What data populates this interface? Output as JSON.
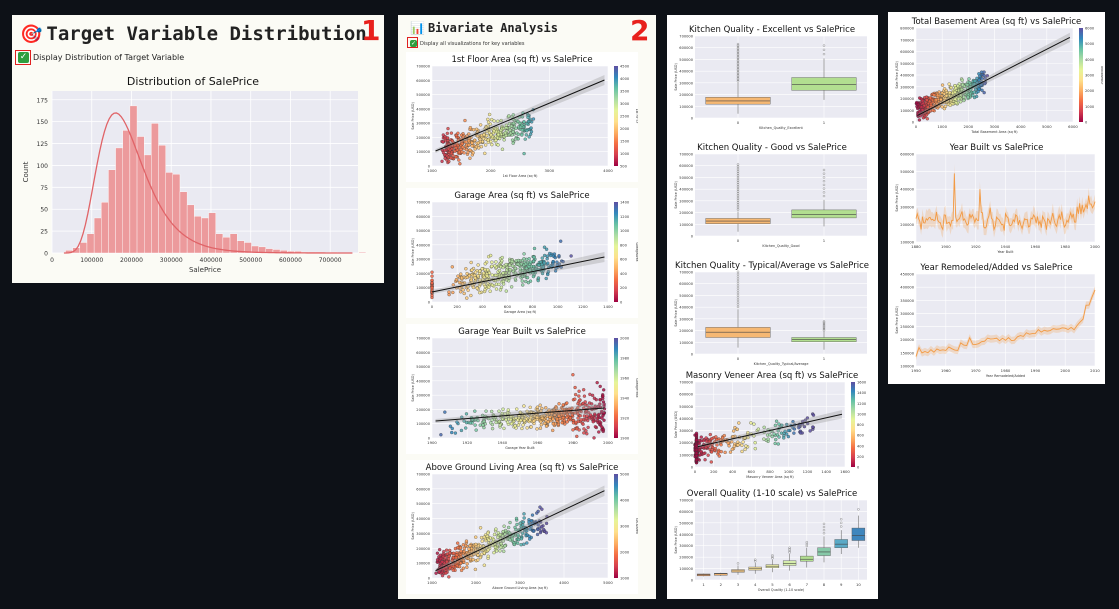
{
  "section1": {
    "emoji": "🎯",
    "title": "Target Variable Distribution",
    "number": "1",
    "checkbox_label": "Display Distribution of Target Variable",
    "chart_title": "Distribution of SalePrice",
    "xlabel": "SalePrice",
    "ylabel": "Count",
    "yticks": [
      "0",
      "25",
      "50",
      "75",
      "100",
      "125",
      "150",
      "175"
    ],
    "xticks": [
      "0",
      "100000",
      "200000",
      "300000",
      "400000",
      "500000",
      "600000",
      "700000"
    ]
  },
  "section2": {
    "emoji": "📊",
    "title": "Bivariate Analysis",
    "number": "2",
    "checkbox_label": "Display all visualizations for key variables"
  },
  "charts": {
    "c_1stflr": {
      "title": "1st Floor Area (sq ft) vs SalePrice",
      "xlabel": "1st Floor Area (sq ft)",
      "ylabel": "Sale Price (USD)",
      "xticks": [
        "1000",
        "2000",
        "3000",
        "4000"
      ],
      "yticks": [
        "0",
        "100000",
        "200000",
        "300000",
        "400000",
        "500000",
        "600000",
        "700000"
      ],
      "cbticks": [
        "4500",
        "4000",
        "3500",
        "3000",
        "2500",
        "2000",
        "1500",
        "1000",
        "500"
      ],
      "cblabel": "1st Flr SF"
    },
    "c_garage": {
      "title": "Garage Area (sq ft) vs SalePrice",
      "xlabel": "Garage Area (sq ft)",
      "ylabel": "Sale Price (USD)",
      "xticks": [
        "0",
        "200",
        "400",
        "600",
        "800",
        "1000",
        "1200",
        "1400"
      ],
      "yticks": [
        "0",
        "100000",
        "200000",
        "300000",
        "400000",
        "500000",
        "600000",
        "700000"
      ],
      "cbticks": [
        "1400",
        "1200",
        "1000",
        "800",
        "600",
        "400",
        "200",
        "0"
      ],
      "cblabel": "GarageArea"
    },
    "c_garyr": {
      "title": "Garage Year Built vs SalePrice",
      "xlabel": "Garage Year Built",
      "ylabel": "Sale Price (USD)",
      "xticks": [
        "1900",
        "1920",
        "1940",
        "1960",
        "1980",
        "2000"
      ],
      "yticks": [
        "0",
        "100000",
        "200000",
        "300000",
        "400000",
        "500000",
        "600000",
        "700000"
      ],
      "cbticks": [
        "2000",
        "1980",
        "1960",
        "1940",
        "1920",
        "1900"
      ],
      "cblabel": "GarageYrBlt"
    },
    "c_grliv": {
      "title": "Above Ground Living Area (sq ft) vs SalePrice",
      "xlabel": "Above Ground Living Area (sq ft)",
      "ylabel": "Sale Price (USD)",
      "xticks": [
        "1000",
        "2000",
        "3000",
        "4000",
        "5000"
      ],
      "yticks": [
        "0",
        "100000",
        "200000",
        "300000",
        "400000",
        "500000",
        "600000",
        "700000"
      ],
      "cbticks": [
        "5000",
        "4000",
        "3000",
        "2000",
        "1000"
      ],
      "cblabel": "GrLivArea"
    },
    "c_kqex": {
      "title": "Kitchen Quality - Excellent vs SalePrice",
      "xlabel": "Kitchen_Quality_Excellent",
      "ylabel": "Sale Price (USD)",
      "xticks": [
        "0",
        "1"
      ],
      "yticks": [
        "0",
        "100000",
        "200000",
        "300000",
        "400000",
        "500000",
        "600000",
        "700000"
      ]
    },
    "c_kqgd": {
      "title": "Kitchen Quality - Good vs SalePrice",
      "xlabel": "Kitchen_Quality_Good",
      "ylabel": "Sale Price (USD)",
      "xticks": [
        "0",
        "1"
      ],
      "yticks": [
        "0",
        "100000",
        "200000",
        "300000",
        "400000",
        "500000",
        "600000",
        "700000"
      ]
    },
    "c_kqta": {
      "title": "Kitchen Quality - Typical/Average vs SalePrice",
      "xlabel": "Kitchen_Quality_Typical/Average",
      "ylabel": "Sale Price (USD)",
      "xticks": [
        "0",
        "1"
      ],
      "yticks": [
        "0",
        "100000",
        "200000",
        "300000",
        "400000",
        "500000",
        "600000",
        "700000"
      ]
    },
    "c_masvnr": {
      "title": "Masonry Veneer Area (sq ft) vs SalePrice",
      "xlabel": "Masonry Veneer Area (sq ft)",
      "ylabel": "Sale Price (USD)",
      "xticks": [
        "0",
        "200",
        "400",
        "600",
        "800",
        "1000",
        "1200",
        "1400",
        "1600"
      ],
      "yticks": [
        "0",
        "100000",
        "200000",
        "300000",
        "400000",
        "500000",
        "600000",
        "700000"
      ],
      "cbticks": [
        "1600",
        "1400",
        "1200",
        "1000",
        "800",
        "600",
        "400",
        "200",
        "0"
      ]
    },
    "c_overall": {
      "title": "Overall Quality (1-10 scale) vs SalePrice",
      "xlabel": "Overall Quality (1-10 scale)",
      "ylabel": "Sale Price (USD)",
      "xticks": [
        "1",
        "2",
        "3",
        "4",
        "5",
        "6",
        "7",
        "8",
        "9",
        "10"
      ],
      "yticks": [
        "0",
        "100000",
        "200000",
        "300000",
        "400000",
        "500000",
        "600000",
        "700000"
      ]
    },
    "c_tbsmt": {
      "title": "Total Basement Area (sq ft) vs SalePrice",
      "xlabel": "Total Basement Area (sq ft)",
      "ylabel": "Sale Price (USD)",
      "xticks": [
        "0",
        "1000",
        "2000",
        "3000",
        "4000",
        "5000",
        "6000"
      ],
      "yticks": [
        "0",
        "100000",
        "200000",
        "300000",
        "400000",
        "500000",
        "600000",
        "700000",
        "800000"
      ],
      "cbticks": [
        "6000",
        "5000",
        "4000",
        "3000",
        "2000",
        "1000",
        "0"
      ],
      "cblabel": "TotalBsmtSF"
    },
    "c_yrbuilt": {
      "title": "Year Built vs SalePrice",
      "xlabel": "Year Built",
      "ylabel": "Sale Price (USD)",
      "xticks": [
        "1880",
        "1900",
        "1920",
        "1940",
        "1960",
        "1980",
        "2000"
      ],
      "yticks": [
        "100000",
        "200000",
        "300000",
        "400000",
        "500000",
        "600000"
      ]
    },
    "c_yrremod": {
      "title": "Year Remodeled/Added vs SalePrice",
      "xlabel": "Year Remodeled/Added",
      "ylabel": "Sale Price (USD)",
      "xticks": [
        "1950",
        "1960",
        "1970",
        "1980",
        "1990",
        "2000",
        "2010"
      ],
      "yticks": [
        "100000",
        "150000",
        "200000",
        "250000",
        "300000",
        "350000",
        "400000",
        "450000"
      ]
    }
  },
  "chart_data": [
    {
      "type": "bar",
      "title": "Distribution of SalePrice",
      "xlabel": "SalePrice",
      "ylabel": "Count",
      "ylim": [
        0,
        185
      ],
      "xlim": [
        0,
        770000
      ],
      "bin_width": 18000,
      "x_start": 34000,
      "values": [
        3,
        6,
        12,
        22,
        40,
        58,
        95,
        120,
        140,
        168,
        133,
        112,
        148,
        123,
        92,
        90,
        70,
        55,
        42,
        40,
        46,
        22,
        18,
        22,
        14,
        12,
        8,
        7,
        5,
        4,
        3,
        2,
        2,
        1,
        1,
        1,
        0,
        1,
        0,
        0,
        0,
        1,
        0,
        1
      ]
    },
    {
      "type": "scatter",
      "title": "1st Floor Area (sq ft) vs SalePrice"
    },
    {
      "type": "scatter",
      "title": "Garage Area (sq ft) vs SalePrice"
    },
    {
      "type": "scatter",
      "title": "Garage Year Built vs SalePrice"
    },
    {
      "type": "scatter",
      "title": "Above Ground Living Area (sq ft) vs SalePrice"
    },
    {
      "type": "box",
      "title": "Kitchen Quality - Excellent vs SalePrice",
      "categories": [
        "0",
        "1"
      ],
      "medians": [
        160000,
        315000
      ]
    },
    {
      "type": "box",
      "title": "Kitchen Quality - Good vs SalePrice",
      "categories": [
        "0",
        "1"
      ],
      "medians": [
        140000,
        200000
      ]
    },
    {
      "type": "box",
      "title": "Kitchen Quality - Typical/Average vs SalePrice",
      "categories": [
        "0",
        "1"
      ],
      "medians": [
        205000,
        137000
      ]
    },
    {
      "type": "scatter",
      "title": "Masonry Veneer Area (sq ft) vs SalePrice"
    },
    {
      "type": "box",
      "title": "Overall Quality (1-10 scale) vs SalePrice",
      "categories": [
        "1",
        "2",
        "3",
        "4",
        "5",
        "6",
        "7",
        "8",
        "9",
        "10"
      ],
      "medians": [
        50000,
        60000,
        87000,
        108000,
        133000,
        160000,
        200000,
        270000,
        345000,
        430000
      ]
    },
    {
      "type": "scatter",
      "title": "Total Basement Area (sq ft) vs SalePrice"
    },
    {
      "type": "line",
      "title": "Year Built vs SalePrice"
    },
    {
      "type": "line",
      "title": "Year Remodeled/Added vs SalePrice"
    }
  ]
}
